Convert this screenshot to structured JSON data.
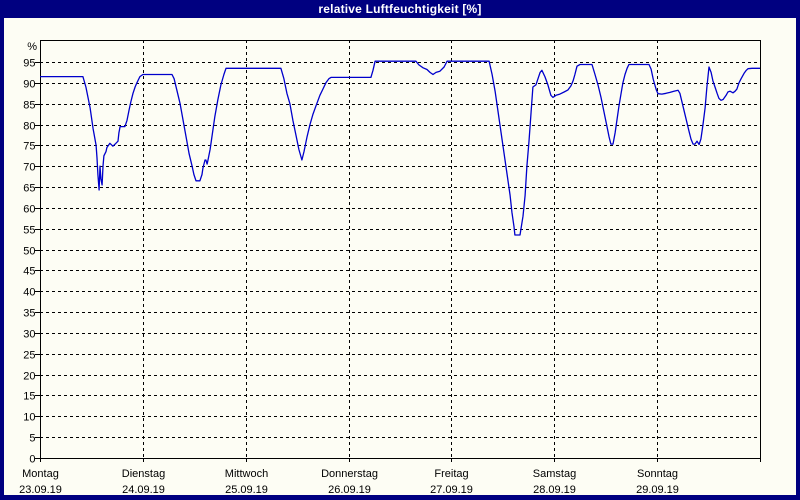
{
  "window": {
    "title": "relative Luftfeuchtigkeit [%]"
  },
  "colors": {
    "window_chrome": "#000080",
    "titlebar_text": "#ffffff",
    "content_background": "#fdfdf4",
    "line_color": "#0000cc",
    "grid_color": "#000000",
    "axis_color": "#000000",
    "label_color": "#000000"
  },
  "chart_data": {
    "type": "line",
    "title": "relative Luftfeuchtigkeit [%]",
    "ylabel": "%",
    "xlabel": "",
    "ylim": [
      0,
      100
    ],
    "yticks": [
      0,
      5,
      10,
      15,
      20,
      25,
      30,
      35,
      40,
      45,
      50,
      55,
      60,
      65,
      70,
      75,
      80,
      85,
      90,
      95
    ],
    "grid": "dashed",
    "legend": "none",
    "hours_total": 168,
    "x_axis": {
      "days": [
        {
          "name": "Montag",
          "date": "23.09.19"
        },
        {
          "name": "Dienstag",
          "date": "24.09.19"
        },
        {
          "name": "Mittwoch",
          "date": "25.09.19"
        },
        {
          "name": "Donnerstag",
          "date": "26.09.19"
        },
        {
          "name": "Freitag",
          "date": "27.09.19"
        },
        {
          "name": "Samstag",
          "date": "28.09.19"
        },
        {
          "name": "Sonntag",
          "date": "29.09.19"
        }
      ]
    },
    "series": [
      {
        "name": "relative Luftfeuchtigkeit",
        "unit": "%",
        "points_hour_value": [
          [
            0,
            91.5
          ],
          [
            10,
            91.5
          ],
          [
            10.7,
            89
          ],
          [
            11.7,
            84
          ],
          [
            12.4,
            79
          ],
          [
            13.1,
            75
          ],
          [
            13.3,
            72
          ],
          [
            13.5,
            68
          ],
          [
            13.8,
            64.3
          ],
          [
            14,
            70
          ],
          [
            14.2,
            67
          ],
          [
            14.5,
            65.5
          ],
          [
            14.7,
            70
          ],
          [
            14.9,
            72.5
          ],
          [
            15.4,
            73.5
          ],
          [
            15.6,
            74.5
          ],
          [
            16.3,
            75.5
          ],
          [
            17,
            74.8
          ],
          [
            17.7,
            75.5
          ],
          [
            18.2,
            76
          ],
          [
            18.4,
            78
          ],
          [
            18.7,
            79.5
          ],
          [
            19.8,
            79.5
          ],
          [
            20.3,
            81
          ],
          [
            20.8,
            83.5
          ],
          [
            21.2,
            85.5
          ],
          [
            21.7,
            87.5
          ],
          [
            22.2,
            89
          ],
          [
            22.6,
            90
          ],
          [
            23.3,
            91.5
          ],
          [
            24,
            92
          ],
          [
            30.8,
            92
          ],
          [
            31.3,
            91
          ],
          [
            32,
            88
          ],
          [
            32.7,
            85
          ],
          [
            33.4,
            81
          ],
          [
            34.1,
            77
          ],
          [
            34.8,
            73
          ],
          [
            35.5,
            70
          ],
          [
            35.9,
            68
          ],
          [
            36.4,
            66.5
          ],
          [
            37.3,
            66.5
          ],
          [
            37.8,
            68
          ],
          [
            38,
            69.5
          ],
          [
            38.5,
            71.5
          ],
          [
            38.7,
            71.5
          ],
          [
            39,
            70.5
          ],
          [
            39.2,
            71.5
          ],
          [
            39.7,
            74
          ],
          [
            40.1,
            77
          ],
          [
            40.8,
            82
          ],
          [
            41.5,
            86
          ],
          [
            42.2,
            89.5
          ],
          [
            42.9,
            92
          ],
          [
            43.4,
            93.5
          ],
          [
            46.7,
            93.5
          ],
          [
            56.2,
            93.5
          ],
          [
            56.9,
            91
          ],
          [
            57.6,
            87.5
          ],
          [
            58.3,
            85
          ],
          [
            59,
            81
          ],
          [
            59.7,
            77.5
          ],
          [
            60.4,
            74
          ],
          [
            61.1,
            71.5
          ],
          [
            61.6,
            73.5
          ],
          [
            62.3,
            77
          ],
          [
            63,
            80
          ],
          [
            63.7,
            82.5
          ],
          [
            64.4,
            84.5
          ],
          [
            65.3,
            87
          ],
          [
            66,
            88.5
          ],
          [
            66.7,
            90
          ],
          [
            67.4,
            91
          ],
          [
            67.9,
            91.3
          ],
          [
            77.2,
            91.3
          ],
          [
            77.7,
            93
          ],
          [
            78.2,
            95.2
          ],
          [
            87.7,
            95.2
          ],
          [
            88.4,
            94.3
          ],
          [
            89.4,
            93.6
          ],
          [
            90.3,
            93.2
          ],
          [
            91,
            92.5
          ],
          [
            91.7,
            92
          ],
          [
            92.4,
            92.5
          ],
          [
            93.3,
            92.8
          ],
          [
            94.3,
            93.8
          ],
          [
            95,
            95.2
          ],
          [
            104.8,
            95.2
          ],
          [
            105.5,
            92
          ],
          [
            106.2,
            88
          ],
          [
            106.9,
            83
          ],
          [
            107.6,
            78
          ],
          [
            108.3,
            73
          ],
          [
            109,
            68
          ],
          [
            109.7,
            63
          ],
          [
            110.1,
            59
          ],
          [
            110.6,
            55.5
          ],
          [
            110.8,
            53.5
          ],
          [
            112,
            53.5
          ],
          [
            112.7,
            58
          ],
          [
            113.2,
            63
          ],
          [
            113.6,
            70
          ],
          [
            114.1,
            76
          ],
          [
            114.6,
            83
          ],
          [
            115,
            89
          ],
          [
            115.7,
            89.5
          ],
          [
            116.2,
            91
          ],
          [
            116.7,
            92.5
          ],
          [
            117.1,
            93
          ],
          [
            117.8,
            91.5
          ],
          [
            118.5,
            89.5
          ],
          [
            119.2,
            87
          ],
          [
            119.7,
            86.5
          ],
          [
            120.4,
            87
          ],
          [
            121.3,
            87.3
          ],
          [
            122.3,
            87.8
          ],
          [
            123.2,
            88.3
          ],
          [
            123.9,
            89.3
          ],
          [
            124.4,
            90.5
          ],
          [
            124.8,
            92
          ],
          [
            125.3,
            94
          ],
          [
            126,
            94.4
          ],
          [
            128.8,
            94.4
          ],
          [
            129.5,
            92
          ],
          [
            130.2,
            89.5
          ],
          [
            130.9,
            86.5
          ],
          [
            131.6,
            83
          ],
          [
            132.3,
            79.5
          ],
          [
            132.8,
            77
          ],
          [
            133.2,
            75.3
          ],
          [
            133.7,
            75.3
          ],
          [
            134.2,
            78
          ],
          [
            134.6,
            81
          ],
          [
            135.1,
            84.5
          ],
          [
            135.6,
            87.5
          ],
          [
            136,
            90
          ],
          [
            136.5,
            92
          ],
          [
            137,
            93.5
          ],
          [
            137.4,
            94.4
          ],
          [
            142.1,
            94.4
          ],
          [
            142.6,
            93.3
          ],
          [
            143.1,
            90.8
          ],
          [
            143.8,
            88.3
          ],
          [
            144.2,
            87.4
          ],
          [
            145.1,
            87.3
          ],
          [
            146.1,
            87.5
          ],
          [
            147,
            87.7
          ],
          [
            147.9,
            88
          ],
          [
            148.9,
            88.2
          ],
          [
            149.3,
            87.5
          ],
          [
            150,
            84.5
          ],
          [
            150.7,
            81.5
          ],
          [
            151.4,
            78.5
          ],
          [
            151.9,
            76.5
          ],
          [
            152.4,
            75.3
          ],
          [
            152.8,
            75.3
          ],
          [
            153.3,
            76
          ],
          [
            153.8,
            75.2
          ],
          [
            154.2,
            76.5
          ],
          [
            154.7,
            80
          ],
          [
            155.2,
            84
          ],
          [
            155.6,
            89
          ],
          [
            156.1,
            93.8
          ],
          [
            156.6,
            92.5
          ],
          [
            157,
            90.5
          ],
          [
            157.5,
            89
          ],
          [
            158,
            87.5
          ],
          [
            158.4,
            86.3
          ],
          [
            158.9,
            85.8
          ],
          [
            159.4,
            86
          ],
          [
            160.1,
            87
          ],
          [
            160.5,
            87.8
          ],
          [
            161,
            88
          ],
          [
            161.7,
            87.6
          ],
          [
            162.2,
            88
          ],
          [
            162.6,
            88.5
          ],
          [
            163.1,
            90
          ],
          [
            163.6,
            91
          ],
          [
            164.3,
            92.3
          ],
          [
            164.8,
            93
          ],
          [
            165.2,
            93.4
          ],
          [
            166.1,
            93.5
          ],
          [
            167.1,
            93.5
          ],
          [
            168,
            93.5
          ]
        ]
      }
    ]
  }
}
